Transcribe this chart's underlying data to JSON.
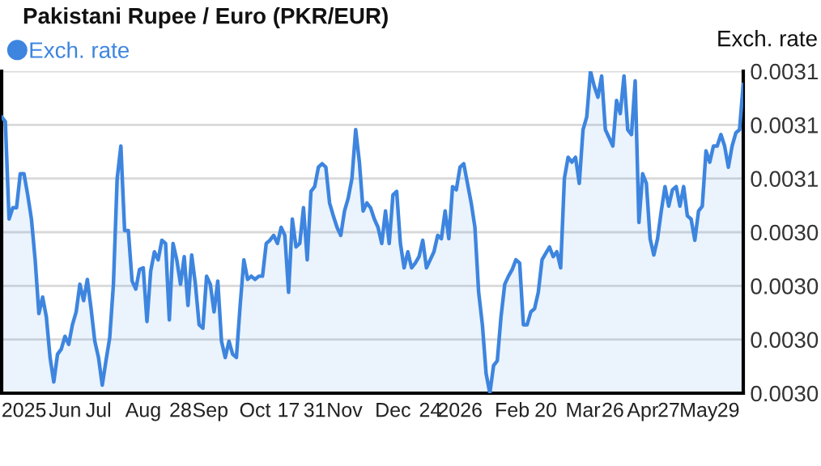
{
  "chart_data": {
    "type": "area",
    "title": "Pakistani Rupee / Euro (PKR/EUR)",
    "ylabel": "Exch. rate",
    "categories": [
      null,
      null,
      null,
      null,
      null,
      null,
      "2025",
      null,
      null,
      null,
      null,
      null,
      null,
      null,
      null,
      null,
      null,
      "Jun",
      null,
      null,
      null,
      null,
      null,
      null,
      null,
      null,
      "Jul",
      null,
      null,
      null,
      null,
      null,
      null,
      null,
      null,
      null,
      null,
      null,
      "Aug",
      null,
      null,
      null,
      null,
      null,
      null,
      null,
      null,
      null,
      "28",
      null,
      null,
      null,
      null,
      null,
      null,
      null,
      "Sep",
      null,
      null,
      null,
      null,
      null,
      null,
      null,
      null,
      null,
      null,
      null,
      "Oct",
      null,
      null,
      null,
      null,
      null,
      null,
      null,
      null,
      "17",
      null,
      null,
      null,
      null,
      null,
      null,
      "31",
      null,
      null,
      null,
      null,
      null,
      null,
      null,
      "Nov",
      null,
      null,
      null,
      null,
      null,
      null,
      null,
      null,
      null,
      null,
      null,
      null,
      "Dec",
      null,
      null,
      null,
      null,
      null,
      null,
      null,
      null,
      null,
      "24",
      null,
      null,
      null,
      null,
      null,
      null,
      null,
      "2026",
      null,
      null,
      null,
      null,
      null,
      null,
      null,
      null,
      null,
      null,
      null,
      null,
      null,
      "Feb",
      null,
      null,
      null,
      null,
      null,
      null,
      null,
      null,
      "20",
      null,
      null,
      null,
      null,
      null,
      null,
      null,
      null,
      null,
      "Mar",
      null,
      null,
      null,
      null,
      null,
      null,
      null,
      "26",
      null,
      null,
      null,
      null,
      null,
      null,
      null,
      "Apr",
      null,
      null,
      null,
      null,
      null,
      null,
      "27",
      null,
      null,
      null,
      null,
      null,
      null,
      null,
      "May",
      null,
      null,
      null,
      null,
      null,
      null,
      null,
      "29",
      null,
      null,
      null,
      null
    ],
    "series": [
      {
        "name": "Exch. rate",
        "color": "#3d85df",
        "values": [
          0.003083,
          0.0030812,
          0.0030449,
          0.0030491,
          0.0030491,
          0.0030618,
          0.0030618,
          0.0030539,
          0.0030449,
          0.0030297,
          0.0030097,
          0.0030158,
          0.0030085,
          0.0029933,
          0.0029842,
          0.0029945,
          0.0029964,
          0.0030012,
          0.0029982,
          0.0030055,
          0.0030103,
          0.0030206,
          0.0030145,
          0.0030224,
          0.0030115,
          0.0029994,
          0.0029933,
          0.002983,
          0.0029921,
          0.0030006,
          0.0030206,
          0.00306,
          0.0030721,
          0.0030406,
          0.0030406,
          0.0030218,
          0.0030188,
          0.0030261,
          0.0030267,
          0.0030067,
          0.0030255,
          0.0030327,
          0.0030297,
          0.003037,
          0.0030358,
          0.0030073,
          0.0030358,
          0.0030297,
          0.0030206,
          0.0030309,
          0.0030127,
          0.0030315,
          0.0030206,
          0.0030055,
          0.0030042,
          0.0030236,
          0.0030206,
          0.0030103,
          0.0030218,
          0.0029994,
          0.0029933,
          0.0029994,
          0.0029945,
          0.0029933,
          0.0030127,
          0.0030297,
          0.0030224,
          0.0030236,
          0.0030224,
          0.0030236,
          0.0030236,
          0.0030358,
          0.003037,
          0.0030388,
          0.0030358,
          0.0030418,
          0.0030388,
          0.0030176,
          0.0030449,
          0.0030345,
          0.0030358,
          0.0030491,
          0.0030297,
          0.0030552,
          0.003057,
          0.0030642,
          0.0030655,
          0.0030642,
          0.0030509,
          0.0030461,
          0.0030418,
          0.0030388,
          0.0030479,
          0.0030527,
          0.00306,
          0.0030782,
          0.0030661,
          0.0030479,
          0.0030509,
          0.0030491,
          0.0030449,
          0.0030418,
          0.0030358,
          0.0030479,
          0.0030358,
          0.0030539,
          0.0030552,
          0.0030358,
          0.0030267,
          0.0030327,
          0.0030267,
          0.0030285,
          0.0030309,
          0.003037,
          0.0030267,
          0.0030297,
          0.0030327,
          0.0030388,
          0.0030376,
          0.0030479,
          0.0030376,
          0.003057,
          0.0030558,
          0.0030642,
          0.0030655,
          0.0030582,
          0.0030509,
          0.0030418,
          0.0030176,
          0.0030055,
          0.0029873,
          0.00298,
          0.0029903,
          0.0029921,
          0.0030085,
          0.0030206,
          0.0030236,
          0.0030261,
          0.0030297,
          0.0030285,
          0.0030055,
          0.0030055,
          0.0030103,
          0.0030115,
          0.0030176,
          0.0030297,
          0.0030321,
          0.0030345,
          0.0030309,
          0.0030327,
          0.0030267,
          0.00306,
          0.0030679,
          0.0030661,
          0.0030679,
          0.0030582,
          0.0030782,
          0.003083,
          0.0031,
          0.0030945,
          0.0030903,
          0.0030982,
          0.0030782,
          0.0030752,
          0.0030721,
          0.0030891,
          0.0030842,
          0.0030982,
          0.0030782,
          0.0030764,
          0.0030964,
          0.0030436,
          0.0030618,
          0.0030582,
          0.0030376,
          0.0030315,
          0.0030376,
          0.0030479,
          0.003057,
          0.0030497,
          0.0030558,
          0.003057,
          0.0030497,
          0.003057,
          0.0030461,
          0.0030449,
          0.003037,
          0.0030479,
          0.0030497,
          0.0030703,
          0.0030661,
          0.0030721,
          0.0030721,
          0.0030764,
          0.0030721,
          0.0030642,
          0.0030721,
          0.003077,
          0.0030782,
          0.0030952
        ]
      }
    ],
    "ylim": [
      0.00298,
      0.0031
    ],
    "yticks": [
      {
        "value": 0.00298,
        "label": "0.0030"
      },
      {
        "value": 0.003,
        "label": "0.0030"
      },
      {
        "value": 0.00302,
        "label": "0.0030"
      },
      {
        "value": 0.00304,
        "label": "0.0030"
      },
      {
        "value": 0.00306,
        "label": "0.0031"
      },
      {
        "value": 0.00308,
        "label": "0.0031"
      },
      {
        "value": 0.0031,
        "label": "0.0031"
      }
    ],
    "grid": "y",
    "legend": "top left",
    "marker": "none",
    "line_style": "solid"
  }
}
